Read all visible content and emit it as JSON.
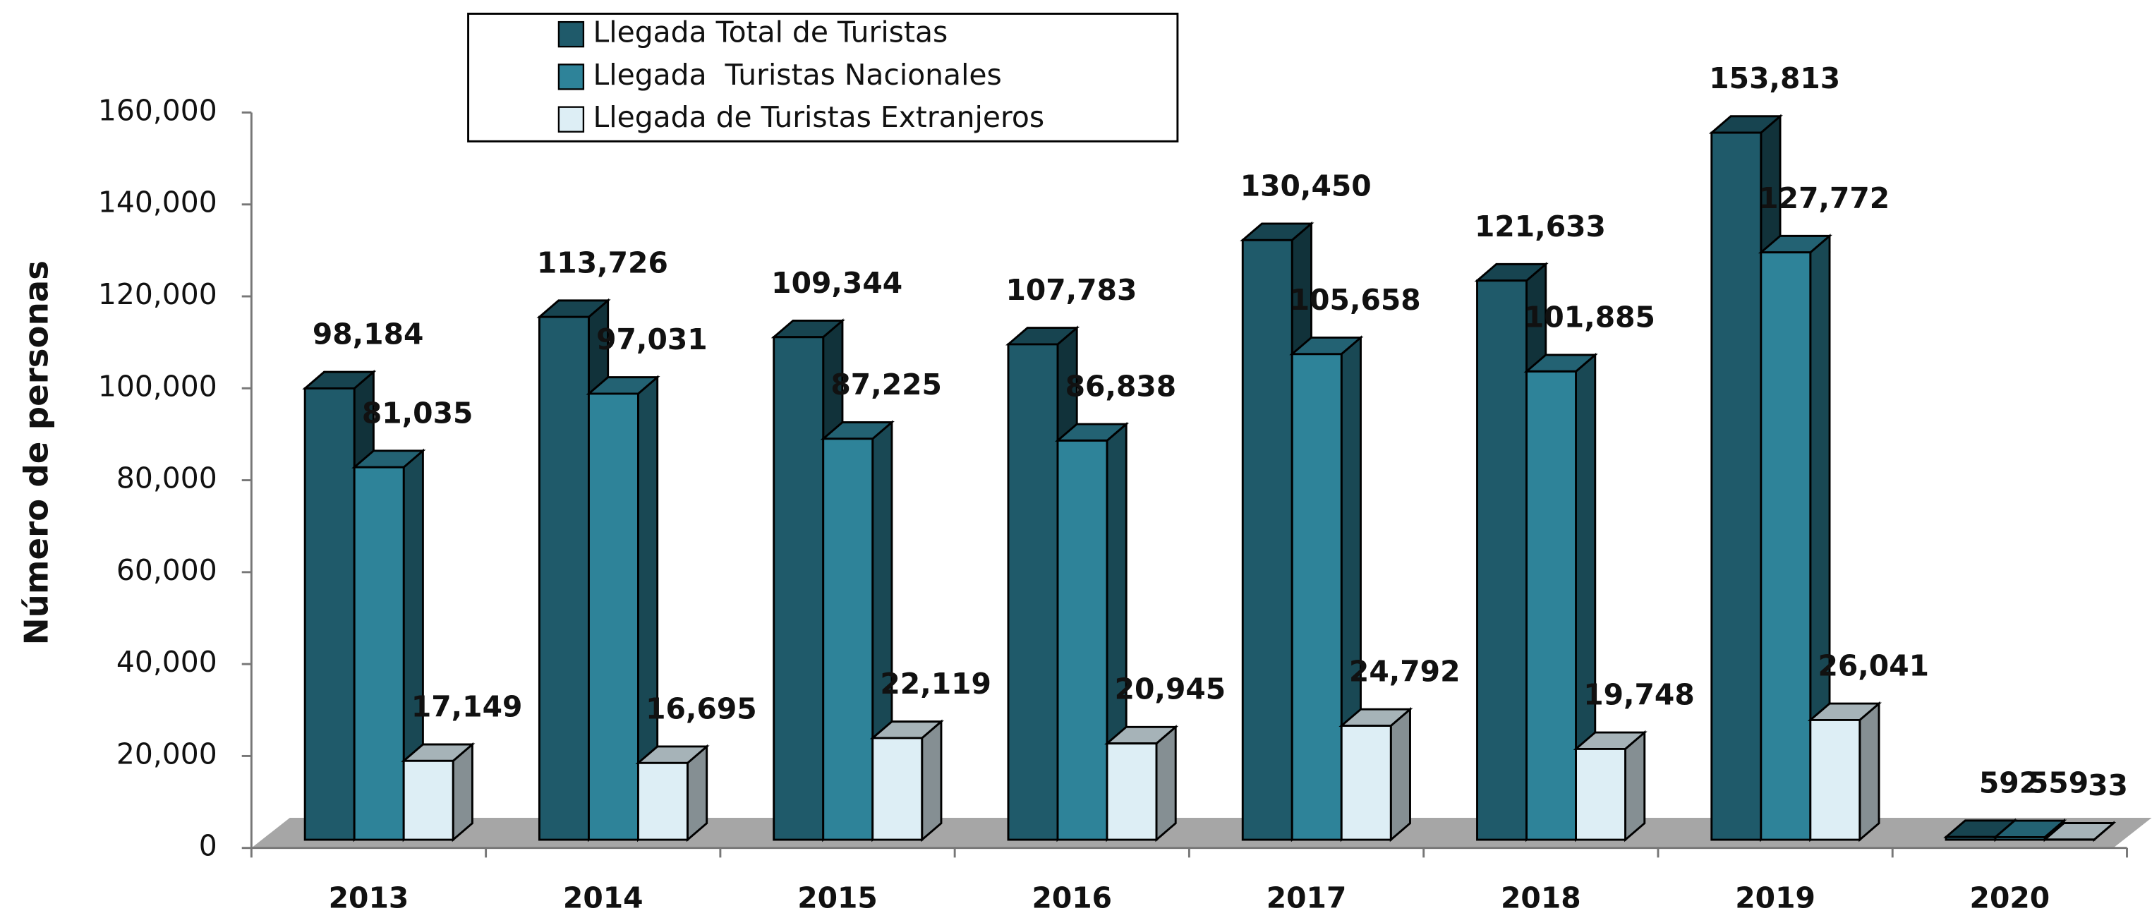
{
  "chart_data": {
    "type": "bar3d",
    "y_label": "Número de personas",
    "categories": [
      "2013",
      "2014",
      "2015",
      "2016",
      "2017",
      "2018",
      "2019",
      "2020"
    ],
    "series": [
      {
        "name": "Llegada Total de Turistas",
        "color": "#1f5a6a",
        "values": [
          98184,
          113726,
          109344,
          107783,
          130450,
          121633,
          153813,
          592
        ],
        "value_labels": [
          "98,184",
          "113,726",
          "109,344",
          "107,783",
          "130,450",
          "121,633",
          "153,813",
          "592"
        ]
      },
      {
        "name": "Llegada  Turistas Nacionales",
        "color": "#2e8399",
        "values": [
          81035,
          97031,
          87225,
          86838,
          105658,
          101885,
          127772,
          559
        ],
        "value_labels": [
          "81,035",
          "97,031",
          "87,225",
          "86,838",
          "105,658",
          "101,885",
          "127,772",
          "559"
        ]
      },
      {
        "name": "Llegada de Turistas Extranjeros",
        "color": "#ddeef5",
        "values": [
          17149,
          16695,
          22119,
          20945,
          24792,
          19748,
          26041,
          33
        ],
        "value_labels": [
          "17,149",
          "16,695",
          "22,119",
          "20,945",
          "24,792",
          "19,748",
          "26,041",
          "33"
        ]
      }
    ],
    "ylim": [
      0,
      160000
    ],
    "yticks": [
      0,
      {
        "value": 20000,
        "label": "20,000"
      },
      {
        "value": 40000,
        "label": "40,000"
      },
      {
        "value": 60000,
        "label": "60,000"
      },
      {
        "value": 80000,
        "label": "80,000"
      },
      {
        "value": 100000,
        "label": "100,000"
      },
      {
        "value": 120000,
        "label": "120,000"
      },
      {
        "value": 140000,
        "label": "140,000"
      },
      {
        "value": 160000,
        "label": "160,000"
      }
    ],
    "legend": "top"
  }
}
